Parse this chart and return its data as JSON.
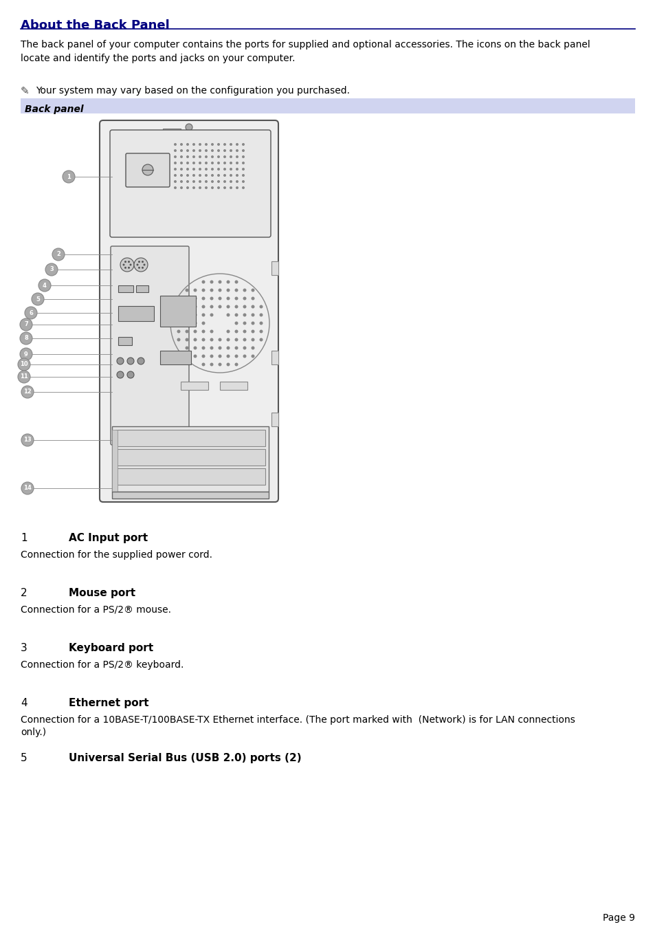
{
  "title": "About the Back Panel",
  "title_color": "#000080",
  "bg_color": "#ffffff",
  "body_text": "The back panel of your computer contains the ports for supplied and optional accessories. The icons on the back panel\nlocate and identify the ports and jacks on your computer.",
  "note_text": "Your system may vary based on the configuration you purchased.",
  "section_label": "Back panel",
  "section_bg": "#d0d4f0",
  "port_entries": [
    {
      "num": "1",
      "label": "AC Input port",
      "desc": "Connection for the supplied power cord."
    },
    {
      "num": "2",
      "label": "Mouse port",
      "desc": "Connection for a PS/2® mouse."
    },
    {
      "num": "3",
      "label": "Keyboard port",
      "desc": "Connection for a PS/2® keyboard."
    },
    {
      "num": "4",
      "label": "Ethernet port",
      "desc": "Connection for a 10BASE-T/100BASE-TX Ethernet interface. (The port marked with  (Network) is for LAN connections\nonly.)"
    },
    {
      "num": "5",
      "label": "Universal Serial Bus (USB 2.0) ports (2)",
      "desc": ""
    }
  ],
  "page_num": "Page 9",
  "line_color": "#000080"
}
